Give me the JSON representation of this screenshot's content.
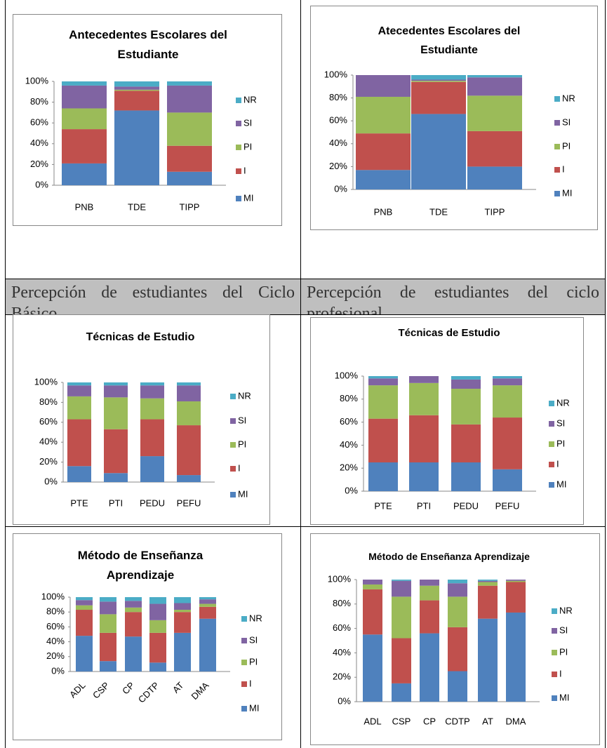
{
  "table": {
    "headers": [
      "Percepción de estudiantes del Ciclo Básico",
      "Percepción de estudiantes del ciclo profesional"
    ]
  },
  "chart_data": [
    {
      "type": "bar",
      "stacked": true,
      "title": "Antecedentes Escolares del Estudiante",
      "categories": [
        "PNB",
        "TDE",
        "TIPP"
      ],
      "series": [
        {
          "name": "MI",
          "color": "#4f81bd",
          "values": [
            21,
            72,
            13
          ]
        },
        {
          "name": "I",
          "color": "#c0504d",
          "values": [
            33,
            19,
            25
          ]
        },
        {
          "name": "PI",
          "color": "#9bbb59",
          "values": [
            20,
            1,
            32
          ]
        },
        {
          "name": "SI",
          "color": "#8064a2",
          "values": [
            22,
            3,
            26
          ]
        },
        {
          "name": "NR",
          "color": "#4bacc6",
          "values": [
            4,
            5,
            4
          ]
        }
      ],
      "ylim": [
        0,
        100
      ],
      "yticks": [
        {
          "value": 0,
          "label": "0%"
        },
        {
          "value": 20,
          "label": "20%"
        },
        {
          "value": 40,
          "label": "40%"
        },
        {
          "value": 60,
          "label": "60%"
        },
        {
          "value": 80,
          "label": "80%"
        },
        {
          "value": 100,
          "label": "100%"
        }
      ],
      "legend": "right"
    },
    {
      "type": "bar",
      "stacked": true,
      "title": "Atecedentes Escolares del Estudiante",
      "categories": [
        "PNB",
        "TDE",
        "TIPP"
      ],
      "series": [
        {
          "name": "MI",
          "color": "#4f81bd",
          "values": [
            17,
            66,
            20
          ]
        },
        {
          "name": "I",
          "color": "#c0504d",
          "values": [
            32,
            28,
            31
          ]
        },
        {
          "name": "PI",
          "color": "#9bbb59",
          "values": [
            32,
            1,
            31
          ]
        },
        {
          "name": "SI",
          "color": "#8064a2",
          "values": [
            19,
            1,
            16
          ]
        },
        {
          "name": "NR",
          "color": "#4bacc6",
          "values": [
            0,
            4,
            2
          ]
        }
      ],
      "ylim": [
        0,
        100
      ],
      "yticks": [
        {
          "value": 0,
          "label": "0%"
        },
        {
          "value": 20,
          "label": "20%"
        },
        {
          "value": 40,
          "label": "40%"
        },
        {
          "value": 60,
          "label": "60%"
        },
        {
          "value": 80,
          "label": "80%"
        },
        {
          "value": 100,
          "label": "100%"
        }
      ],
      "legend": "right"
    },
    {
      "type": "bar",
      "stacked": true,
      "title": "Técnicas de Estudio",
      "categories": [
        "PTE",
        "PTI",
        "PEDU",
        "PEFU"
      ],
      "series": [
        {
          "name": "MI",
          "color": "#4f81bd",
          "values": [
            16,
            9,
            26,
            7
          ]
        },
        {
          "name": "I",
          "color": "#c0504d",
          "values": [
            47,
            44,
            37,
            50
          ]
        },
        {
          "name": "PI",
          "color": "#9bbb59",
          "values": [
            23,
            32,
            21,
            24
          ]
        },
        {
          "name": "SI",
          "color": "#8064a2",
          "values": [
            11,
            12,
            13,
            16
          ]
        },
        {
          "name": "NR",
          "color": "#4bacc6",
          "values": [
            3,
            3,
            3,
            3
          ]
        }
      ],
      "ylim": [
        0,
        100
      ],
      "yticks": [
        {
          "value": 0,
          "label": "0%"
        },
        {
          "value": 20,
          "label": "20%"
        },
        {
          "value": 40,
          "label": "40%"
        },
        {
          "value": 60,
          "label": "60%"
        },
        {
          "value": 80,
          "label": "80%"
        },
        {
          "value": 100,
          "label": "100%"
        }
      ],
      "legend": "right"
    },
    {
      "type": "bar",
      "stacked": true,
      "title": "Técnicas de Estudio",
      "categories": [
        "PTE",
        "PTI",
        "PEDU",
        "PEFU"
      ],
      "series": [
        {
          "name": "MI",
          "color": "#4f81bd",
          "values": [
            25,
            25,
            25,
            19
          ]
        },
        {
          "name": "I",
          "color": "#c0504d",
          "values": [
            38,
            41,
            33,
            45
          ]
        },
        {
          "name": "PI",
          "color": "#9bbb59",
          "values": [
            29,
            28,
            31,
            28
          ]
        },
        {
          "name": "SI",
          "color": "#8064a2",
          "values": [
            6,
            6,
            8,
            6
          ]
        },
        {
          "name": "NR",
          "color": "#4bacc6",
          "values": [
            2,
            0,
            3,
            2
          ]
        }
      ],
      "ylim": [
        0,
        100
      ],
      "yticks": [
        {
          "value": 0,
          "label": "0%"
        },
        {
          "value": 20,
          "label": "20%"
        },
        {
          "value": 40,
          "label": "40%"
        },
        {
          "value": 60,
          "label": "60%"
        },
        {
          "value": 80,
          "label": "80%"
        },
        {
          "value": 100,
          "label": "100%"
        }
      ],
      "legend": "right"
    },
    {
      "type": "bar",
      "stacked": true,
      "title": "Método de Enseñanza Aprendizaje",
      "categories": [
        "ADL",
        "CSP",
        "CP",
        "CDTP",
        "AT",
        "DMA"
      ],
      "series": [
        {
          "name": "MI",
          "color": "#4f81bd",
          "values": [
            48,
            14,
            47,
            12,
            52,
            71
          ]
        },
        {
          "name": "I",
          "color": "#c0504d",
          "values": [
            35,
            38,
            33,
            40,
            28,
            16
          ]
        },
        {
          "name": "PI",
          "color": "#9bbb59",
          "values": [
            6,
            25,
            6,
            17,
            3,
            4
          ]
        },
        {
          "name": "SI",
          "color": "#8064a2",
          "values": [
            7,
            17,
            9,
            22,
            9,
            6
          ]
        },
        {
          "name": "NR",
          "color": "#4bacc6",
          "values": [
            4,
            6,
            5,
            9,
            8,
            3
          ]
        }
      ],
      "ylim": [
        0,
        100
      ],
      "yticks": [
        {
          "value": 0,
          "label": "0%"
        },
        {
          "value": 20,
          "label": "20%"
        },
        {
          "value": 40,
          "label": "40%"
        },
        {
          "value": 60,
          "label": "60%"
        },
        {
          "value": 80,
          "label": "80%"
        },
        {
          "value": 100,
          "label": "100%"
        }
      ],
      "legend": "right"
    },
    {
      "type": "bar",
      "stacked": true,
      "title": "Método de Enseñanza Aprendizaje",
      "categories": [
        "ADL",
        "CSP",
        "CP",
        "CDTP",
        "AT",
        "DMA"
      ],
      "series": [
        {
          "name": "MI",
          "color": "#4f81bd",
          "values": [
            55,
            15,
            56,
            25,
            68,
            73
          ]
        },
        {
          "name": "I",
          "color": "#c0504d",
          "values": [
            37,
            37,
            27,
            36,
            27,
            25
          ]
        },
        {
          "name": "PI",
          "color": "#9bbb59",
          "values": [
            4,
            34,
            12,
            25,
            3,
            1
          ]
        },
        {
          "name": "SI",
          "color": "#8064a2",
          "values": [
            4,
            13,
            5,
            11,
            1,
            1
          ]
        },
        {
          "name": "NR",
          "color": "#4bacc6",
          "values": [
            0,
            1,
            0,
            3,
            1,
            0
          ]
        }
      ],
      "ylim": [
        0,
        100
      ],
      "yticks": [
        {
          "value": 0,
          "label": "0%"
        },
        {
          "value": 20,
          "label": "20%"
        },
        {
          "value": 40,
          "label": "40%"
        },
        {
          "value": 60,
          "label": "60%"
        },
        {
          "value": 80,
          "label": "80%"
        },
        {
          "value": 100,
          "label": "100%"
        }
      ],
      "legend": "right"
    }
  ]
}
